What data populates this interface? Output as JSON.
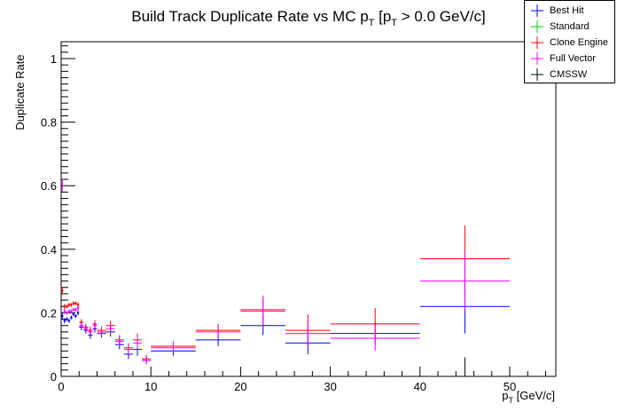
{
  "chart_data": {
    "type": "scatter",
    "title_main": "Build Track Duplicate Rate vs MC p",
    "title_sub1": "T",
    "title_mid": " [p",
    "title_sub2": "T",
    "title_end": " > 0.0 GeV/c]",
    "xlabel_main": "p",
    "xlabel_sub": "T",
    "xlabel_unit": " [GeV/c]",
    "ylabel": "Duplicate Rate",
    "xlim": [
      0,
      55
    ],
    "ylim": [
      0,
      1.05
    ],
    "x_ticks": [
      0,
      10,
      20,
      30,
      40,
      50
    ],
    "y_ticks": [
      0,
      0.2,
      0.4,
      0.6,
      0.8,
      1
    ],
    "x_tick_labels": [
      "0",
      "10",
      "20",
      "30",
      "40",
      "50"
    ],
    "y_tick_labels": [
      "0",
      "0.2",
      "0.4",
      "0.6",
      "0.8",
      "1"
    ],
    "legend": [
      {
        "name": "Best Hit",
        "color": "#0000ff"
      },
      {
        "name": "Standard",
        "color": "#00cc00"
      },
      {
        "name": "Clone Engine",
        "color": "#ff0000"
      },
      {
        "name": "Full Vector",
        "color": "#ff00ff"
      },
      {
        "name": "CMSSW",
        "color": "#000000"
      }
    ],
    "series": [
      {
        "name": "Best Hit",
        "color": "#0000ff",
        "points": [
          {
            "x": 0.125,
            "xerr": 0.125,
            "y": 0.19,
            "yerr": 0.01
          },
          {
            "x": 0.375,
            "xerr": 0.125,
            "y": 0.175,
            "yerr": 0.008
          },
          {
            "x": 0.625,
            "xerr": 0.125,
            "y": 0.18,
            "yerr": 0.006
          },
          {
            "x": 0.875,
            "xerr": 0.125,
            "y": 0.175,
            "yerr": 0.006
          },
          {
            "x": 1.125,
            "xerr": 0.125,
            "y": 0.185,
            "yerr": 0.006
          },
          {
            "x": 1.375,
            "xerr": 0.125,
            "y": 0.195,
            "yerr": 0.006
          },
          {
            "x": 1.625,
            "xerr": 0.125,
            "y": 0.19,
            "yerr": 0.006
          },
          {
            "x": 1.875,
            "xerr": 0.125,
            "y": 0.2,
            "yerr": 0.008
          },
          {
            "x": 2.25,
            "xerr": 0.25,
            "y": 0.155,
            "yerr": 0.01
          },
          {
            "x": 2.75,
            "xerr": 0.25,
            "y": 0.145,
            "yerr": 0.01
          },
          {
            "x": 3.25,
            "xerr": 0.25,
            "y": 0.13,
            "yerr": 0.012
          },
          {
            "x": 3.75,
            "xerr": 0.25,
            "y": 0.15,
            "yerr": 0.012
          },
          {
            "x": 4.5,
            "xerr": 0.5,
            "y": 0.135,
            "yerr": 0.012
          },
          {
            "x": 5.5,
            "xerr": 0.5,
            "y": 0.14,
            "yerr": 0.015
          },
          {
            "x": 6.5,
            "xerr": 0.5,
            "y": 0.1,
            "yerr": 0.015
          },
          {
            "x": 7.5,
            "xerr": 0.5,
            "y": 0.07,
            "yerr": 0.015
          },
          {
            "x": 8.5,
            "xerr": 0.5,
            "y": 0.085,
            "yerr": 0.02
          },
          {
            "x": 9.5,
            "xerr": 0.5,
            "y": 0.05,
            "yerr": 0.012
          },
          {
            "x": 12.5,
            "xerr": 2.5,
            "y": 0.08,
            "yerr": 0.015
          },
          {
            "x": 17.5,
            "xerr": 2.5,
            "y": 0.115,
            "yerr": 0.02
          },
          {
            "x": 22.5,
            "xerr": 2.5,
            "y": 0.16,
            "yerr": 0.03
          },
          {
            "x": 27.5,
            "xerr": 2.5,
            "y": 0.105,
            "yerr": 0.035
          },
          {
            "x": 35,
            "xerr": 5,
            "y": 0.135,
            "yerr": 0.035
          },
          {
            "x": 45,
            "xerr": 5,
            "y": 0.22,
            "yerr": 0.085
          }
        ]
      },
      {
        "name": "Clone Engine",
        "color": "#ff0000",
        "points": [
          {
            "x": 0.125,
            "xerr": 0.125,
            "y": 0.27,
            "yerr": 0.012
          },
          {
            "x": 0.375,
            "xerr": 0.125,
            "y": 0.22,
            "yerr": 0.008
          },
          {
            "x": 0.625,
            "xerr": 0.125,
            "y": 0.22,
            "yerr": 0.006
          },
          {
            "x": 0.875,
            "xerr": 0.125,
            "y": 0.225,
            "yerr": 0.006
          },
          {
            "x": 1.125,
            "xerr": 0.125,
            "y": 0.225,
            "yerr": 0.006
          },
          {
            "x": 1.375,
            "xerr": 0.125,
            "y": 0.23,
            "yerr": 0.006
          },
          {
            "x": 1.625,
            "xerr": 0.125,
            "y": 0.23,
            "yerr": 0.006
          },
          {
            "x": 1.875,
            "xerr": 0.125,
            "y": 0.225,
            "yerr": 0.008
          },
          {
            "x": 2.25,
            "xerr": 0.25,
            "y": 0.17,
            "yerr": 0.01
          },
          {
            "x": 2.75,
            "xerr": 0.25,
            "y": 0.155,
            "yerr": 0.01
          },
          {
            "x": 3.25,
            "xerr": 0.25,
            "y": 0.145,
            "yerr": 0.012
          },
          {
            "x": 3.75,
            "xerr": 0.25,
            "y": 0.165,
            "yerr": 0.012
          },
          {
            "x": 4.5,
            "xerr": 0.5,
            "y": 0.145,
            "yerr": 0.012
          },
          {
            "x": 5.5,
            "xerr": 0.5,
            "y": 0.16,
            "yerr": 0.015
          },
          {
            "x": 6.5,
            "xerr": 0.5,
            "y": 0.115,
            "yerr": 0.015
          },
          {
            "x": 7.5,
            "xerr": 0.5,
            "y": 0.09,
            "yerr": 0.015
          },
          {
            "x": 8.5,
            "xerr": 0.5,
            "y": 0.115,
            "yerr": 0.02
          },
          {
            "x": 9.5,
            "xerr": 0.5,
            "y": 0.055,
            "yerr": 0.012
          },
          {
            "x": 12.5,
            "xerr": 2.5,
            "y": 0.095,
            "yerr": 0.015
          },
          {
            "x": 17.5,
            "xerr": 2.5,
            "y": 0.145,
            "yerr": 0.02
          },
          {
            "x": 22.5,
            "xerr": 2.5,
            "y": 0.21,
            "yerr": 0.035
          },
          {
            "x": 27.5,
            "xerr": 2.5,
            "y": 0.145,
            "yerr": 0.05
          },
          {
            "x": 35,
            "xerr": 5,
            "y": 0.165,
            "yerr": 0.05
          },
          {
            "x": 45,
            "xerr": 5,
            "y": 0.37,
            "yerr": 0.105
          }
        ]
      },
      {
        "name": "Full Vector",
        "color": "#ff00ff",
        "points": [
          {
            "x": 0.125,
            "xerr": 0.125,
            "y": 0.6,
            "yerr": 0.02
          },
          {
            "x": 0.375,
            "xerr": 0.125,
            "y": 0.205,
            "yerr": 0.008
          },
          {
            "x": 0.625,
            "xerr": 0.125,
            "y": 0.2,
            "yerr": 0.006
          },
          {
            "x": 0.875,
            "xerr": 0.125,
            "y": 0.205,
            "yerr": 0.006
          },
          {
            "x": 1.125,
            "xerr": 0.125,
            "y": 0.205,
            "yerr": 0.006
          },
          {
            "x": 1.375,
            "xerr": 0.125,
            "y": 0.21,
            "yerr": 0.006
          },
          {
            "x": 1.625,
            "xerr": 0.125,
            "y": 0.21,
            "yerr": 0.006
          },
          {
            "x": 1.875,
            "xerr": 0.125,
            "y": 0.215,
            "yerr": 0.008
          },
          {
            "x": 2.25,
            "xerr": 0.25,
            "y": 0.16,
            "yerr": 0.01
          },
          {
            "x": 2.75,
            "xerr": 0.25,
            "y": 0.15,
            "yerr": 0.01
          },
          {
            "x": 3.25,
            "xerr": 0.25,
            "y": 0.14,
            "yerr": 0.012
          },
          {
            "x": 3.75,
            "xerr": 0.25,
            "y": 0.16,
            "yerr": 0.012
          },
          {
            "x": 4.5,
            "xerr": 0.5,
            "y": 0.14,
            "yerr": 0.012
          },
          {
            "x": 5.5,
            "xerr": 0.5,
            "y": 0.15,
            "yerr": 0.015
          },
          {
            "x": 6.5,
            "xerr": 0.5,
            "y": 0.11,
            "yerr": 0.015
          },
          {
            "x": 7.5,
            "xerr": 0.5,
            "y": 0.085,
            "yerr": 0.015
          },
          {
            "x": 8.5,
            "xerr": 0.5,
            "y": 0.105,
            "yerr": 0.02
          },
          {
            "x": 9.5,
            "xerr": 0.5,
            "y": 0.05,
            "yerr": 0.012
          },
          {
            "x": 12.5,
            "xerr": 2.5,
            "y": 0.09,
            "yerr": 0.015
          },
          {
            "x": 17.5,
            "xerr": 2.5,
            "y": 0.14,
            "yerr": 0.02
          },
          {
            "x": 22.5,
            "xerr": 2.5,
            "y": 0.205,
            "yerr": 0.05
          },
          {
            "x": 27.5,
            "xerr": 2.5,
            "y": 0.135,
            "yerr": 0.04
          },
          {
            "x": 35,
            "xerr": 5,
            "y": 0.12,
            "yerr": 0.04
          },
          {
            "x": 45,
            "xerr": 5,
            "y": 0.3,
            "yerr": 0.09
          }
        ]
      },
      {
        "name": "CMSSW",
        "color": "#000000",
        "points": [
          {
            "x": 45,
            "xerr": 0,
            "y": 0,
            "yerr": 0.06
          }
        ]
      }
    ]
  }
}
